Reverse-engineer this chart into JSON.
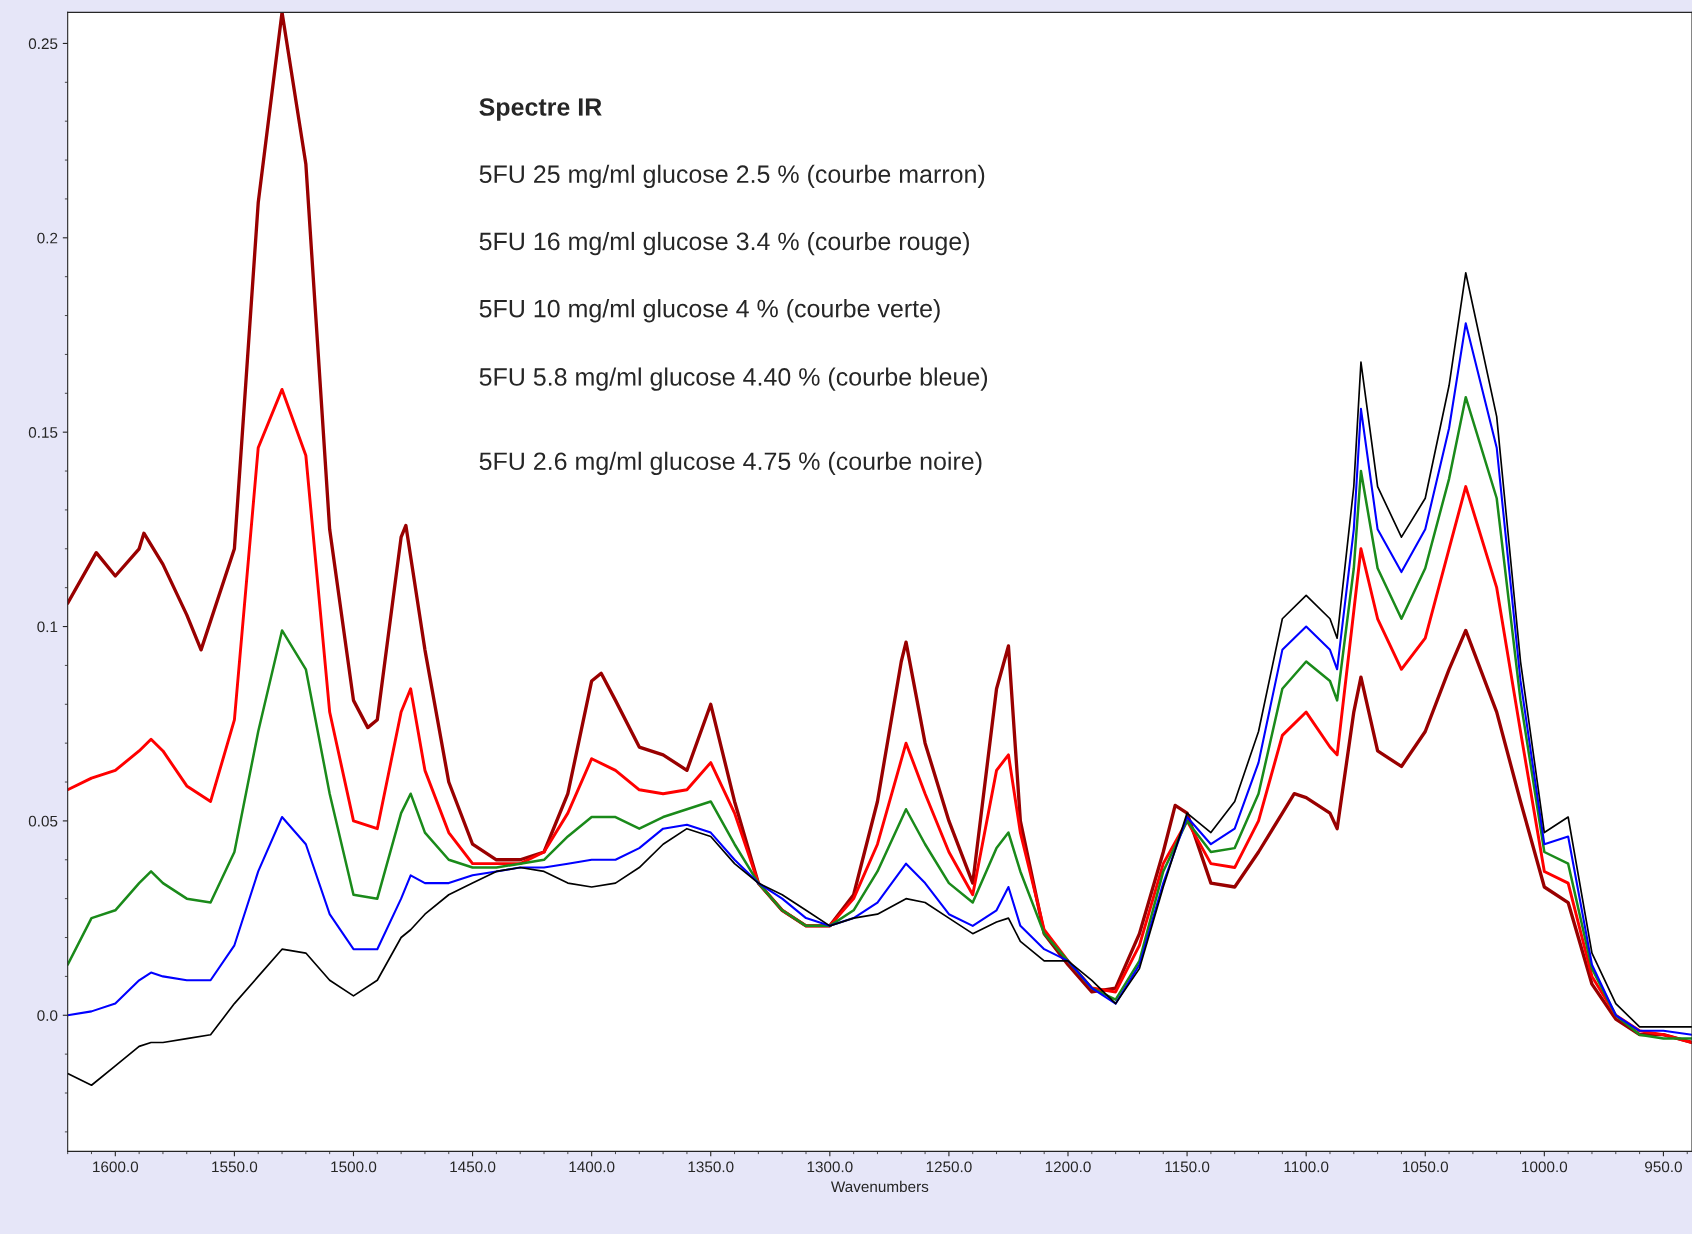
{
  "chart_data": {
    "type": "line",
    "title": "Spectre IR",
    "xlabel": "Wavenumbers",
    "annotations": [
      "5FU 25 mg/ml glucose 2.5 % (courbe marron)",
      "5FU 16 mg/ml glucose 3.4 % (courbe rouge)",
      "5FU 10 mg/ml glucose 4 % (courbe verte)",
      "5FU 5.8 mg/ml glucose 4.40 % (courbe bleue)",
      "5FU 2.6 mg/ml glucose 4.75 % (courbe noire)"
    ],
    "x": [
      1620,
      1610,
      1600,
      1590,
      1585,
      1580,
      1570,
      1560,
      1550,
      1540,
      1530,
      1520,
      1510,
      1500,
      1490,
      1480,
      1476,
      1470,
      1460,
      1450,
      1440,
      1430,
      1420,
      1410,
      1400,
      1390,
      1380,
      1370,
      1360,
      1350,
      1340,
      1330,
      1320,
      1310,
      1300,
      1290,
      1280,
      1268,
      1260,
      1250,
      1240,
      1230,
      1225,
      1220,
      1210,
      1200,
      1190,
      1180,
      1170,
      1160,
      1150,
      1140,
      1130,
      1120,
      1110,
      1100,
      1090,
      1087,
      1080,
      1077,
      1070,
      1060,
      1050,
      1040,
      1033,
      1020,
      1010,
      1000,
      990,
      980,
      970,
      960,
      950,
      938
    ],
    "series": [
      {
        "color": "#990000",
        "x": [
          1620,
          1608,
          1600,
          1590,
          1588,
          1580,
          1570,
          1564,
          1550,
          1540,
          1530,
          1520,
          1510,
          1500,
          1494,
          1490,
          1480,
          1478,
          1470,
          1460,
          1450,
          1440,
          1430,
          1420,
          1410,
          1400,
          1396,
          1390,
          1380,
          1370,
          1360,
          1350,
          1340,
          1330,
          1320,
          1310,
          1300,
          1290,
          1280,
          1270,
          1268,
          1260,
          1250,
          1240,
          1230,
          1225,
          1220,
          1210,
          1200,
          1190,
          1180,
          1170,
          1160,
          1155,
          1150,
          1140,
          1130,
          1120,
          1110,
          1105,
          1100,
          1090,
          1087,
          1080,
          1077,
          1070,
          1060,
          1050,
          1040,
          1033,
          1020,
          1010,
          1000,
          990,
          980,
          970,
          960,
          950,
          938
        ],
        "values": [
          0.106,
          0.119,
          0.113,
          0.12,
          0.124,
          0.116,
          0.103,
          0.094,
          0.12,
          0.209,
          0.258,
          0.219,
          0.125,
          0.081,
          0.074,
          0.076,
          0.123,
          0.126,
          0.094,
          0.06,
          0.044,
          0.04,
          0.04,
          0.042,
          0.057,
          0.086,
          0.088,
          0.081,
          0.069,
          0.067,
          0.063,
          0.08,
          0.055,
          0.034,
          0.027,
          0.023,
          0.023,
          0.031,
          0.055,
          0.091,
          0.096,
          0.07,
          0.05,
          0.034,
          0.084,
          0.095,
          0.05,
          0.021,
          0.013,
          0.006,
          0.007,
          0.021,
          0.042,
          0.054,
          0.052,
          0.034,
          0.033,
          0.042,
          0.052,
          0.057,
          0.056,
          0.052,
          0.048,
          0.078,
          0.087,
          0.068,
          0.064,
          0.073,
          0.089,
          0.099,
          0.078,
          0.055,
          0.033,
          0.029,
          0.008,
          -0.001,
          -0.005,
          -0.005,
          -0.007
        ]
      },
      {
        "color": "#ff0000",
        "values": [
          0.058,
          0.061,
          0.063,
          0.068,
          0.071,
          0.068,
          0.059,
          0.055,
          0.076,
          0.146,
          0.161,
          0.144,
          0.078,
          0.05,
          0.048,
          0.078,
          0.084,
          0.063,
          0.047,
          0.039,
          0.039,
          0.039,
          0.042,
          0.052,
          0.066,
          0.063,
          0.058,
          0.057,
          0.058,
          0.065,
          0.052,
          0.034,
          0.027,
          0.023,
          0.023,
          0.03,
          0.044,
          0.07,
          0.057,
          0.042,
          0.031,
          0.063,
          0.067,
          0.047,
          0.022,
          0.014,
          0.007,
          0.006,
          0.018,
          0.039,
          0.05,
          0.039,
          0.038,
          0.05,
          0.072,
          0.078,
          0.069,
          0.067,
          0.104,
          0.12,
          0.102,
          0.089,
          0.097,
          0.12,
          0.136,
          0.11,
          0.073,
          0.037,
          0.034,
          0.01,
          0.0,
          -0.004,
          -0.005,
          -0.007
        ]
      },
      {
        "color": "#1a8a1a",
        "values": [
          0.013,
          0.025,
          0.027,
          0.034,
          0.037,
          0.034,
          0.03,
          0.029,
          0.042,
          0.073,
          0.099,
          0.089,
          0.057,
          0.031,
          0.03,
          0.052,
          0.057,
          0.047,
          0.04,
          0.038,
          0.038,
          0.039,
          0.04,
          0.046,
          0.051,
          0.051,
          0.048,
          0.051,
          0.053,
          0.055,
          0.044,
          0.034,
          0.027,
          0.023,
          0.023,
          0.027,
          0.037,
          0.053,
          0.044,
          0.034,
          0.029,
          0.043,
          0.047,
          0.037,
          0.021,
          0.014,
          0.007,
          0.004,
          0.014,
          0.037,
          0.05,
          0.042,
          0.043,
          0.057,
          0.084,
          0.091,
          0.086,
          0.081,
          0.115,
          0.14,
          0.115,
          0.102,
          0.115,
          0.138,
          0.159,
          0.133,
          0.081,
          0.042,
          0.039,
          0.012,
          0.0,
          -0.005,
          -0.006,
          -0.006
        ]
      },
      {
        "color": "#0000ff",
        "values": [
          0.0,
          0.001,
          0.003,
          0.009,
          0.011,
          0.01,
          0.009,
          0.009,
          0.018,
          0.037,
          0.051,
          0.044,
          0.026,
          0.017,
          0.017,
          0.03,
          0.036,
          0.034,
          0.034,
          0.036,
          0.037,
          0.038,
          0.038,
          0.039,
          0.04,
          0.04,
          0.043,
          0.048,
          0.049,
          0.047,
          0.04,
          0.034,
          0.03,
          0.025,
          0.023,
          0.025,
          0.029,
          0.039,
          0.034,
          0.026,
          0.023,
          0.027,
          0.033,
          0.023,
          0.017,
          0.014,
          0.007,
          0.003,
          0.013,
          0.034,
          0.051,
          0.044,
          0.048,
          0.065,
          0.094,
          0.1,
          0.094,
          0.089,
          0.125,
          0.156,
          0.125,
          0.114,
          0.125,
          0.151,
          0.178,
          0.146,
          0.086,
          0.044,
          0.046,
          0.013,
          0.0,
          -0.004,
          -0.004,
          -0.005
        ]
      },
      {
        "color": "#000000",
        "values": [
          -0.015,
          -0.018,
          -0.013,
          -0.008,
          -0.007,
          -0.007,
          -0.006,
          -0.005,
          0.003,
          0.01,
          0.017,
          0.016,
          0.009,
          0.005,
          0.009,
          0.02,
          0.022,
          0.026,
          0.031,
          0.034,
          0.037,
          0.038,
          0.037,
          0.034,
          0.033,
          0.034,
          0.038,
          0.044,
          0.048,
          0.046,
          0.039,
          0.034,
          0.031,
          0.027,
          0.023,
          0.025,
          0.026,
          0.03,
          0.029,
          0.025,
          0.021,
          0.024,
          0.025,
          0.019,
          0.014,
          0.014,
          0.009,
          0.003,
          0.012,
          0.033,
          0.052,
          0.047,
          0.055,
          0.073,
          0.102,
          0.108,
          0.102,
          0.097,
          0.136,
          0.168,
          0.136,
          0.123,
          0.133,
          0.162,
          0.191,
          0.154,
          0.091,
          0.047,
          0.051,
          0.016,
          0.003,
          -0.003,
          -0.003,
          -0.003
        ]
      }
    ],
    "xlim": [
      1620,
      938
    ],
    "ylim": [
      -0.035,
      0.258
    ],
    "xticks": [
      {
        "value": 1600,
        "label": "1600.0"
      },
      {
        "value": 1550,
        "label": "1550.0"
      },
      {
        "value": 1500,
        "label": "1500.0"
      },
      {
        "value": 1450,
        "label": "1450.0"
      },
      {
        "value": 1400,
        "label": "1400.0"
      },
      {
        "value": 1350,
        "label": "1350.0"
      },
      {
        "value": 1300,
        "label": "1300.0"
      },
      {
        "value": 1250,
        "label": "1250.0"
      },
      {
        "value": 1200,
        "label": "1200.0"
      },
      {
        "value": 1150,
        "label": "1150.0"
      },
      {
        "value": 1100,
        "label": "1100.0"
      },
      {
        "value": 1050,
        "label": "1050.0"
      },
      {
        "value": 1000,
        "label": "1000.0"
      },
      {
        "value": 950,
        "label": "950.0"
      }
    ],
    "yticks": [
      {
        "value": 0,
        "label": "0.0"
      },
      0.05,
      0.1,
      0.15,
      0.2,
      0.25
    ],
    "grid": false,
    "legend": false
  }
}
